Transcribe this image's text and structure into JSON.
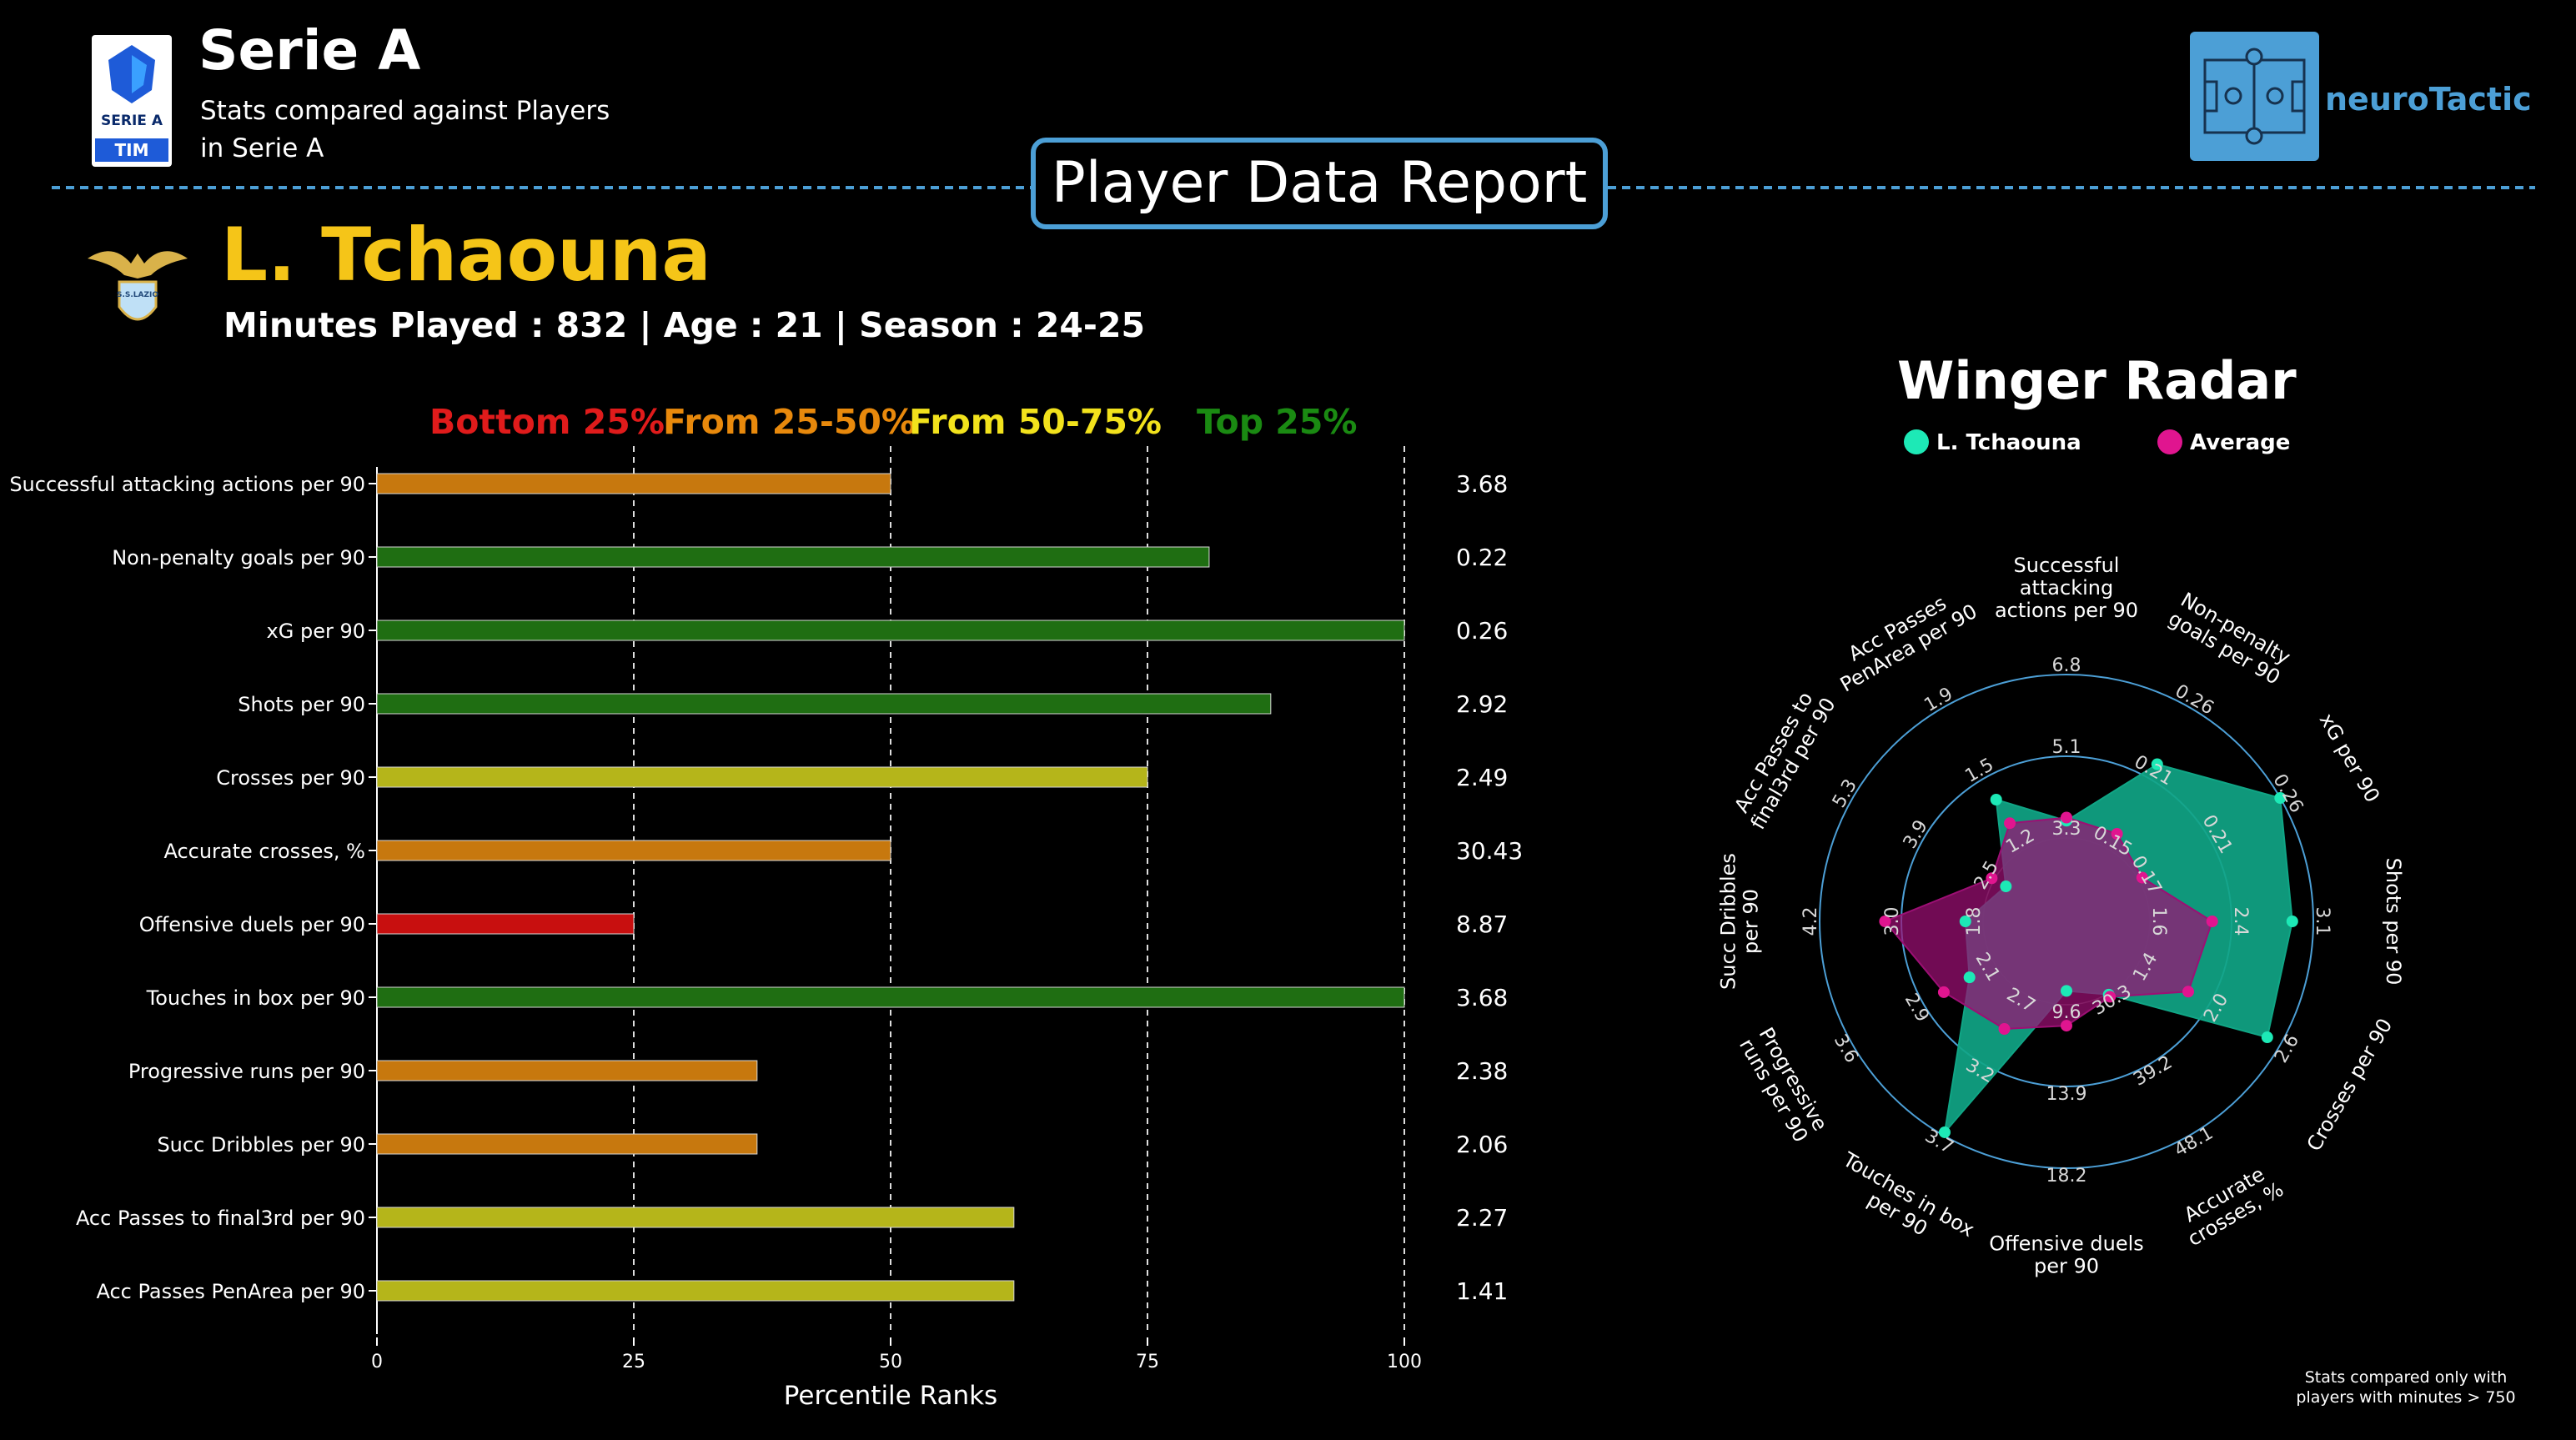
{
  "header": {
    "league_title": "Serie A",
    "subtitle_line1": "Stats compared against Players",
    "subtitle_line2": "in Serie A",
    "league_logo_text": "SERIE A",
    "league_logo_sponsor": "TIM",
    "brand_name": "neuroTactic",
    "report_title": "Player Data Report"
  },
  "player": {
    "name": "L. Tchaouna",
    "info": "Minutes Played : 832 | Age : 21 | Season : 24-25",
    "club_badge_text": "S.S.LAZIO"
  },
  "colors": {
    "accent": "#4c9fd6",
    "name": "#f5c518",
    "bottom": "#c80f0f",
    "low_mid": "#c7780e",
    "high_mid": "#b5b51a",
    "top": "#1f6e12",
    "player_radar": "#10a585",
    "player_dot": "#1de9b6",
    "average_radar": "#9c0f74",
    "average_dot": "#e0158f"
  },
  "footnote": {
    "line1": "Stats compared only with",
    "line2": "players with minutes > 750"
  },
  "chart_data": [
    {
      "type": "bar",
      "orientation": "horizontal",
      "xlabel": "Percentile Ranks",
      "xlim": [
        0,
        100
      ],
      "xticks": [
        0,
        25,
        50,
        75,
        100
      ],
      "bands": [
        {
          "label": "Bottom 25%",
          "color": "#e01b1b"
        },
        {
          "label": "From 25-50%",
          "color": "#e8890c"
        },
        {
          "label": "From 50-75%",
          "color": "#f2e21c"
        },
        {
          "label": "Top 25%",
          "color": "#1a8a12"
        }
      ],
      "categories": [
        "Successful attacking actions per 90",
        "Non-penalty goals per 90",
        "xG per 90",
        "Shots per 90",
        "Crosses per 90",
        "Accurate crosses, %",
        "Offensive duels per 90",
        "Touches in box per 90",
        "Progressive runs per 90",
        "Succ Dribbles per 90",
        "Acc Passes to final3rd per 90",
        "Acc Passes PenArea per 90"
      ],
      "percentiles": [
        50,
        81,
        100,
        87,
        75,
        50,
        25,
        100,
        37,
        37,
        62,
        62
      ],
      "value_labels": [
        "3.68",
        "0.22",
        "0.26",
        "2.92",
        "2.49",
        "30.43",
        "8.87",
        "3.68",
        "2.38",
        "2.06",
        "2.27",
        "1.41"
      ]
    },
    {
      "type": "radar",
      "title": "Winger Radar",
      "axes": [
        {
          "label": "Successful attacking actions per 90",
          "ticks": [
            "3.3",
            "5.1",
            "6.8"
          ]
        },
        {
          "label": "Non-penalty goals per 90",
          "ticks": [
            "0.15",
            "0.21",
            "0.26"
          ]
        },
        {
          "label": "xG per 90",
          "ticks": [
            "0.17",
            "0.21",
            "0.26"
          ]
        },
        {
          "label": "Shots per 90",
          "ticks": [
            "1.6",
            "2.4",
            "3.1"
          ]
        },
        {
          "label": "Crosses per 90",
          "ticks": [
            "1.4",
            "2.0",
            "2.6"
          ]
        },
        {
          "label": "Accurate crosses, %",
          "ticks": [
            "30.3",
            "39.2",
            "48.1"
          ]
        },
        {
          "label": "Offensive duels per 90",
          "ticks": [
            "9.6",
            "13.9",
            "18.2"
          ]
        },
        {
          "label": "Touches in box per 90",
          "ticks": [
            "2.7",
            "3.2",
            "3.7"
          ]
        },
        {
          "label": "Progressive runs per 90",
          "ticks": [
            "2.1",
            "2.9",
            "3.6"
          ]
        },
        {
          "label": "Succ Dribbles per 90",
          "ticks": [
            "1.8",
            "3.0",
            "4.2"
          ]
        },
        {
          "label": "Acc Passes to final3rd per 90",
          "ticks": [
            "2.5",
            "3.9",
            "5.3"
          ]
        },
        {
          "label": "Acc Passes PenArea per 90",
          "ticks": [
            "1.2",
            "1.5",
            "1.9"
          ]
        }
      ],
      "series": [
        {
          "name": "L. Tchaouna",
          "values": [
            3.68,
            0.22,
            0.26,
            2.92,
            2.49,
            30.43,
            8.87,
            3.68,
            2.38,
            2.06,
            2.27,
            1.41
          ]
        },
        {
          "name": "Average",
          "values": [
            3.75,
            0.163,
            0.172,
            2.21,
            1.82,
            30.7,
            10.7,
            2.95,
            2.67,
            3.24,
            2.55,
            1.31
          ]
        }
      ],
      "legend": "top"
    }
  ]
}
